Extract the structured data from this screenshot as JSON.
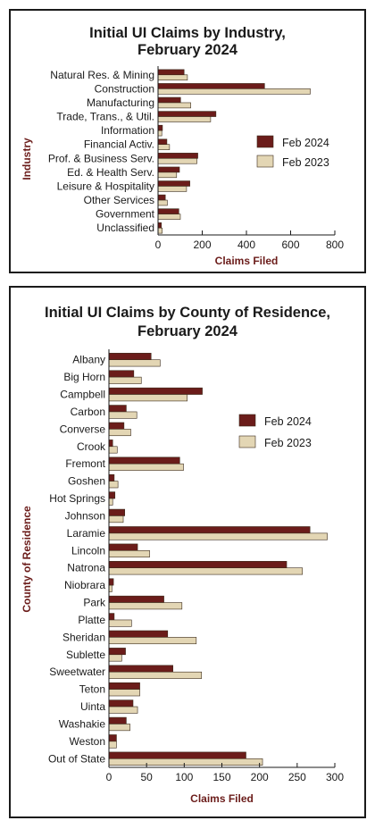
{
  "chart_data": [
    {
      "type": "bar",
      "orientation": "horizontal",
      "title_lines": [
        "Initial UI Claims by Industry,",
        "February 2024"
      ],
      "xlabel": "Claims Filed",
      "ylabel": "Industry",
      "xlim": [
        0,
        800
      ],
      "xticks": [
        "0",
        "200",
        "400",
        "600",
        "800"
      ],
      "legend_position": "right",
      "categories": [
        "Natural Res. & Mining",
        "Construction",
        "Manufacturing",
        "Trade, Trans., & Util.",
        "Information",
        "Financial Activ.",
        "Prof. & Business Serv.",
        "Ed. & Health Serv.",
        "Leisure & Hospitality",
        "Other Services",
        "Government",
        "Unclassified"
      ],
      "series": [
        {
          "name": "Feb 2024",
          "color": "#6b1c1a",
          "values": [
            118,
            482,
            102,
            262,
            20,
            40,
            180,
            97,
            144,
            33,
            94,
            15
          ]
        },
        {
          "name": "Feb 2023",
          "color": "#e3d6b4",
          "values": [
            133,
            689,
            148,
            238,
            17,
            52,
            176,
            84,
            129,
            42,
            101,
            19
          ]
        }
      ]
    },
    {
      "type": "bar",
      "orientation": "horizontal",
      "title_lines": [
        "Initial UI Claims by County of Residence,",
        "February 2024"
      ],
      "xlabel": "Claims Filed",
      "ylabel": "County of Residence",
      "xlim": [
        0,
        300
      ],
      "xticks": [
        "0",
        "50",
        "100",
        "150",
        "200",
        "250",
        "300"
      ],
      "legend_position": "right",
      "categories": [
        "Albany",
        "Big Horn",
        "Campbell",
        "Carbon",
        "Converse",
        "Crook",
        "Fremont",
        "Goshen",
        "Hot Springs",
        "Johnson",
        "Laramie",
        "Lincoln",
        "Natrona",
        "Niobrara",
        "Park",
        "Platte",
        "Sheridan",
        "Sublette",
        "Sweetwater",
        "Teton",
        "Uinta",
        "Washakie",
        "Weston",
        "Out of State"
      ],
      "series": [
        {
          "name": "Feb 2024",
          "color": "#6b1c1a",
          "values": [
            56,
            33,
            124,
            23,
            20,
            5,
            94,
            7,
            8,
            21,
            267,
            38,
            236,
            6,
            73,
            7,
            78,
            22,
            85,
            41,
            32,
            23,
            10,
            182
          ]
        },
        {
          "name": "Feb 2023",
          "color": "#e3d6b4",
          "values": [
            68,
            43,
            104,
            37,
            29,
            11,
            99,
            12,
            5,
            19,
            290,
            54,
            257,
            4,
            97,
            30,
            116,
            17,
            123,
            41,
            38,
            28,
            10,
            204
          ]
        }
      ]
    }
  ]
}
